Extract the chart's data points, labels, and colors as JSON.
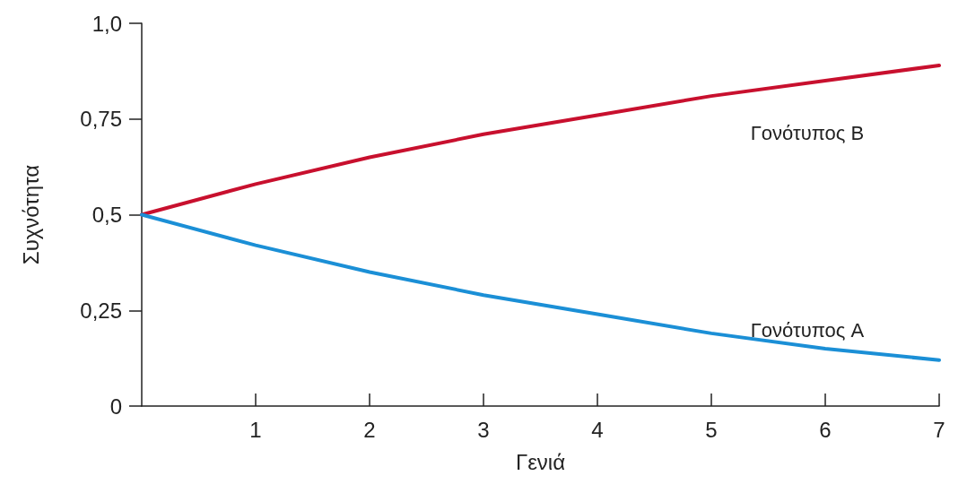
{
  "chart_data": {
    "type": "line",
    "xlabel": "Γενιά",
    "ylabel": "Συχνότητα",
    "x": [
      0,
      1,
      2,
      3,
      4,
      5,
      6,
      7
    ],
    "series": [
      {
        "name": "Γονότυπος B",
        "color": "#c8102e",
        "values": [
          0.5,
          0.58,
          0.65,
          0.71,
          0.76,
          0.81,
          0.85,
          0.89
        ]
      },
      {
        "name": "Γονότυπος A",
        "color": "#1b8fd6",
        "values": [
          0.5,
          0.42,
          0.35,
          0.29,
          0.24,
          0.19,
          0.15,
          0.12
        ]
      }
    ],
    "xlim": [
      0,
      7
    ],
    "xticks": [
      1,
      2,
      3,
      4,
      5,
      6,
      7
    ],
    "ylim": [
      0,
      1
    ],
    "yticks": [
      {
        "value": 0,
        "label": "0"
      },
      {
        "value": 0.25,
        "label": "0,25"
      },
      {
        "value": 0.5,
        "label": "0,5"
      },
      {
        "value": 0.75,
        "label": "0,75"
      },
      {
        "value": 1,
        "label": "1,0"
      }
    ],
    "grid": false,
    "legend": false,
    "marker": "none",
    "line_style": "solid"
  }
}
